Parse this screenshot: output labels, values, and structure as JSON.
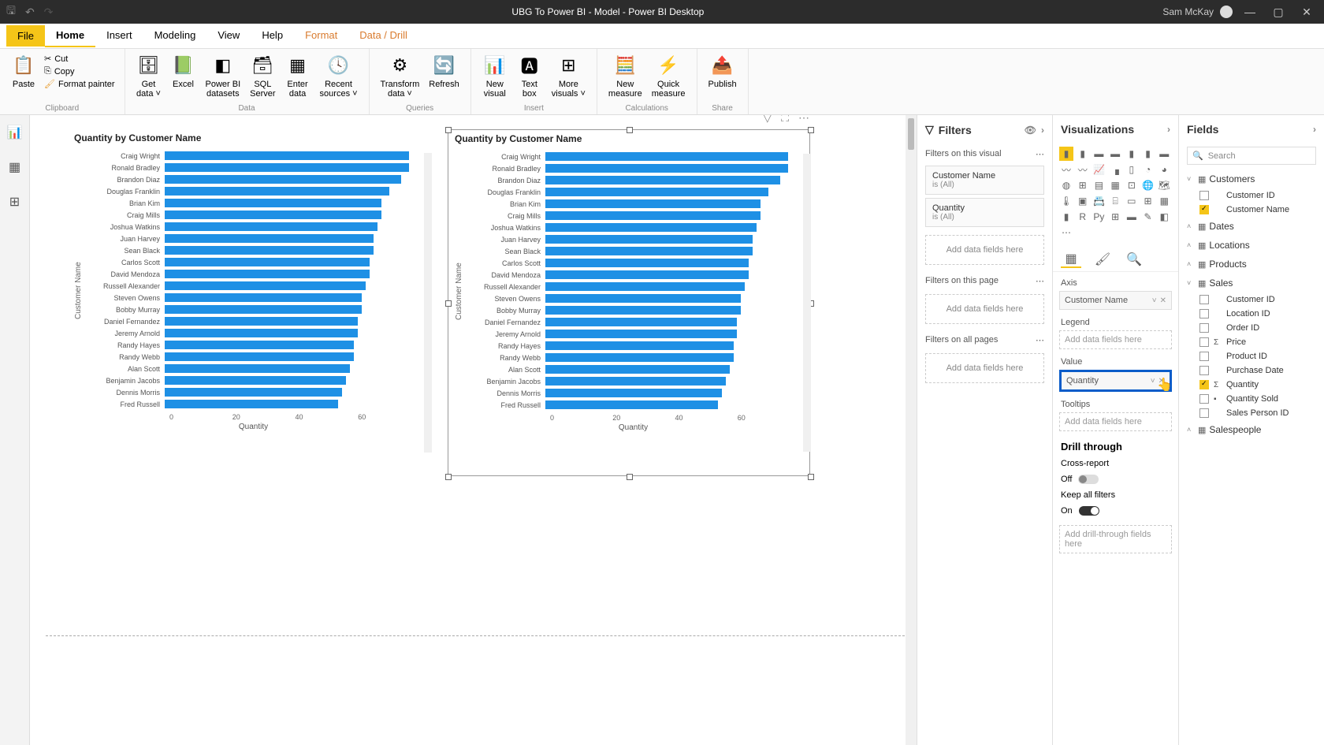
{
  "titlebar": {
    "title": "UBG To Power BI - Model - Power BI Desktop",
    "user": "Sam McKay"
  },
  "menu": {
    "file": "File",
    "items": [
      "Home",
      "Insert",
      "Modeling",
      "View",
      "Help",
      "Format",
      "Data / Drill"
    ],
    "active_index": 0,
    "orange_start": 5
  },
  "ribbon": {
    "clipboard": {
      "paste": "Paste",
      "cut": "Cut",
      "copy": "Copy",
      "fmt": "Format painter",
      "group": "Clipboard"
    },
    "data": {
      "get": "Get\ndata",
      "excel": "Excel",
      "pbi": "Power BI\ndatasets",
      "sql": "SQL\nServer",
      "enter": "Enter\ndata",
      "recent": "Recent\nsources",
      "group": "Data"
    },
    "queries": {
      "transform": "Transform\ndata",
      "refresh": "Refresh",
      "group": "Queries"
    },
    "insert": {
      "newvis": "New\nvisual",
      "textbox": "Text\nbox",
      "more": "More\nvisuals",
      "group": "Insert"
    },
    "calc": {
      "newmeas": "New\nmeasure",
      "quick": "Quick\nmeasure",
      "group": "Calculations"
    },
    "share": {
      "publish": "Publish",
      "group": "Share"
    }
  },
  "charts": [
    {
      "title": "Quantity by Customer Name",
      "y_label": "Customer Name",
      "x_label": "Quantity",
      "x_ticks": [
        "0",
        "20",
        "40",
        "60"
      ],
      "x_max": 65,
      "bar_color": "#1e90e5",
      "data": [
        {
          "name": "Craig Wright",
          "value": 62
        },
        {
          "name": "Ronald Bradley",
          "value": 62
        },
        {
          "name": "Brandon Diaz",
          "value": 60
        },
        {
          "name": "Douglas Franklin",
          "value": 57
        },
        {
          "name": "Brian Kim",
          "value": 55
        },
        {
          "name": "Craig Mills",
          "value": 55
        },
        {
          "name": "Joshua Watkins",
          "value": 54
        },
        {
          "name": "Juan Harvey",
          "value": 53
        },
        {
          "name": "Sean Black",
          "value": 53
        },
        {
          "name": "Carlos Scott",
          "value": 52
        },
        {
          "name": "David Mendoza",
          "value": 52
        },
        {
          "name": "Russell Alexander",
          "value": 51
        },
        {
          "name": "Steven Owens",
          "value": 50
        },
        {
          "name": "Bobby Murray",
          "value": 50
        },
        {
          "name": "Daniel Fernandez",
          "value": 49
        },
        {
          "name": "Jeremy Arnold",
          "value": 49
        },
        {
          "name": "Randy Hayes",
          "value": 48
        },
        {
          "name": "Randy Webb",
          "value": 48
        },
        {
          "name": "Alan Scott",
          "value": 47
        },
        {
          "name": "Benjamin Jacobs",
          "value": 46
        },
        {
          "name": "Dennis Morris",
          "value": 45
        },
        {
          "name": "Fred Russell",
          "value": 44
        }
      ]
    },
    {
      "title": "Quantity by Customer Name",
      "y_label": "Customer Name",
      "x_label": "Quantity",
      "x_ticks": [
        "0",
        "20",
        "40",
        "60"
      ],
      "x_max": 65,
      "bar_color": "#1e90e5",
      "selected": true,
      "data": [
        {
          "name": "Craig Wright",
          "value": 62
        },
        {
          "name": "Ronald Bradley",
          "value": 62
        },
        {
          "name": "Brandon Diaz",
          "value": 60
        },
        {
          "name": "Douglas Franklin",
          "value": 57
        },
        {
          "name": "Brian Kim",
          "value": 55
        },
        {
          "name": "Craig Mills",
          "value": 55
        },
        {
          "name": "Joshua Watkins",
          "value": 54
        },
        {
          "name": "Juan Harvey",
          "value": 53
        },
        {
          "name": "Sean Black",
          "value": 53
        },
        {
          "name": "Carlos Scott",
          "value": 52
        },
        {
          "name": "David Mendoza",
          "value": 52
        },
        {
          "name": "Russell Alexander",
          "value": 51
        },
        {
          "name": "Steven Owens",
          "value": 50
        },
        {
          "name": "Bobby Murray",
          "value": 50
        },
        {
          "name": "Daniel Fernandez",
          "value": 49
        },
        {
          "name": "Jeremy Arnold",
          "value": 49
        },
        {
          "name": "Randy Hayes",
          "value": 48
        },
        {
          "name": "Randy Webb",
          "value": 48
        },
        {
          "name": "Alan Scott",
          "value": 47
        },
        {
          "name": "Benjamin Jacobs",
          "value": 46
        },
        {
          "name": "Dennis Morris",
          "value": 45
        },
        {
          "name": "Fred Russell",
          "value": 44
        }
      ]
    }
  ],
  "filters": {
    "title": "Filters",
    "visual_title": "Filters on this visual",
    "cards": [
      {
        "name": "Customer Name",
        "value": "is (All)"
      },
      {
        "name": "Quantity",
        "value": "is (All)"
      }
    ],
    "page_title": "Filters on this page",
    "all_title": "Filters on all pages",
    "add_text": "Add data fields here"
  },
  "viz": {
    "title": "Visualizations",
    "axis_label": "Axis",
    "axis_value": "Customer Name",
    "legend_label": "Legend",
    "value_label": "Value",
    "value_value": "Quantity",
    "tooltips_label": "Tooltips",
    "add_text": "Add data fields here",
    "drill_title": "Drill through",
    "cross_report": "Cross-report",
    "off": "Off",
    "keep_filters": "Keep all filters",
    "on": "On",
    "drill_add": "Add drill-through fields here"
  },
  "fields": {
    "title": "Fields",
    "search": "Search",
    "tables": [
      {
        "name": "Customers",
        "expanded": true,
        "items": [
          {
            "label": "Customer ID",
            "checked": false,
            "sigma": false
          },
          {
            "label": "Customer Name",
            "checked": true,
            "sigma": false
          }
        ]
      },
      {
        "name": "Dates",
        "expanded": false
      },
      {
        "name": "Locations",
        "expanded": false
      },
      {
        "name": "Products",
        "expanded": false
      },
      {
        "name": "Sales",
        "expanded": true,
        "items": [
          {
            "label": "Customer ID",
            "checked": false,
            "sigma": false
          },
          {
            "label": "Location ID",
            "checked": false,
            "sigma": false
          },
          {
            "label": "Order ID",
            "checked": false,
            "sigma": false
          },
          {
            "label": "Price",
            "checked": false,
            "sigma": true
          },
          {
            "label": "Product ID",
            "checked": false,
            "sigma": false
          },
          {
            "label": "Purchase Date",
            "checked": false,
            "sigma": false
          },
          {
            "label": "Quantity",
            "checked": true,
            "sigma": true
          },
          {
            "label": "Quantity Sold",
            "checked": false,
            "sigma": false,
            "calc": true
          },
          {
            "label": "Sales Person ID",
            "checked": false,
            "sigma": false
          }
        ]
      },
      {
        "name": "Salespeople",
        "expanded": false
      }
    ]
  }
}
